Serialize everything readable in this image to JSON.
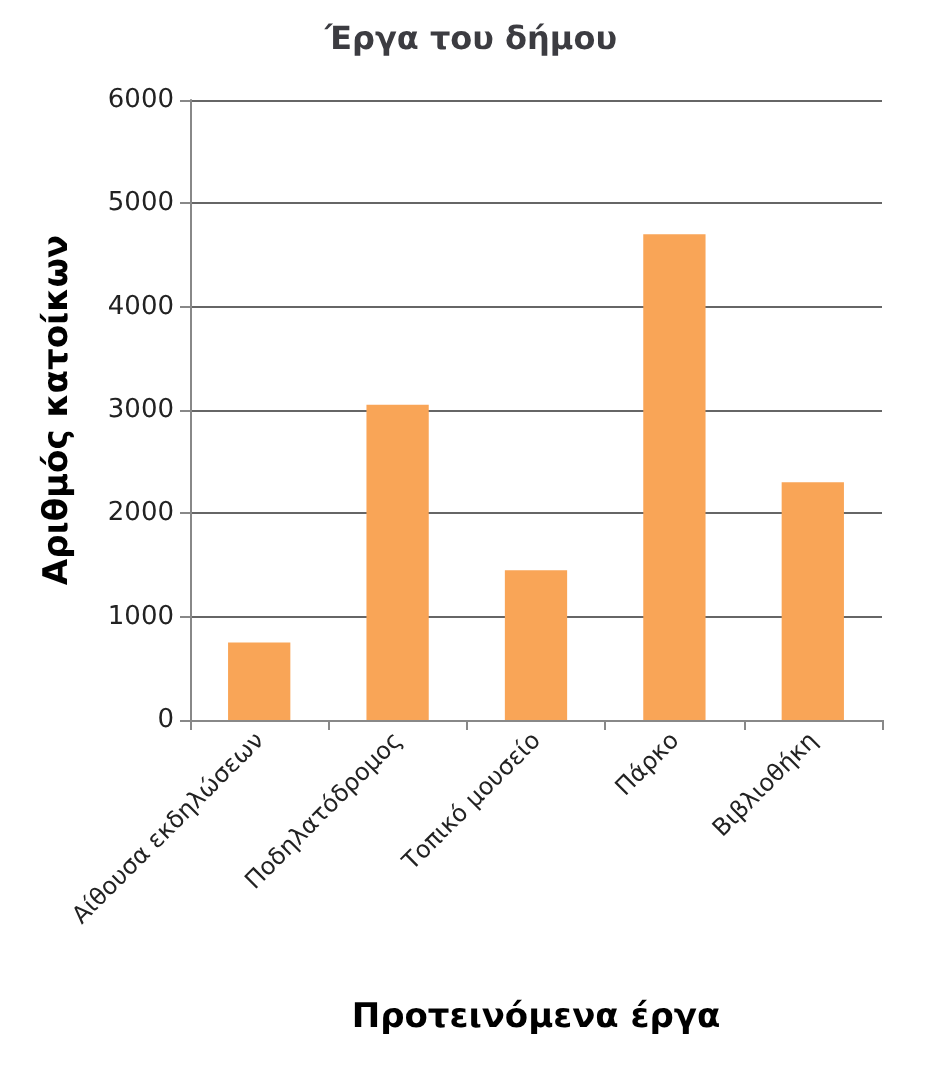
{
  "chart_data": {
    "type": "bar",
    "title": "Έργα του δήμου",
    "xlabel": "Προτεινόμενα έργα",
    "ylabel": "Αριθμός κατοίκων",
    "categories": [
      "Αίθουσα εκδηλώσεων",
      "Ποδηλατόδρομος",
      "Τοπικό μουσείο",
      "Πάρκο",
      "Βιβλιοθήκη"
    ],
    "values": [
      750,
      3050,
      1450,
      4700,
      2300
    ],
    "color": "#f9a557",
    "ylim": [
      0,
      6000
    ],
    "yticks": [
      0,
      1000,
      2000,
      3000,
      4000,
      5000,
      6000
    ],
    "grid": "y"
  }
}
